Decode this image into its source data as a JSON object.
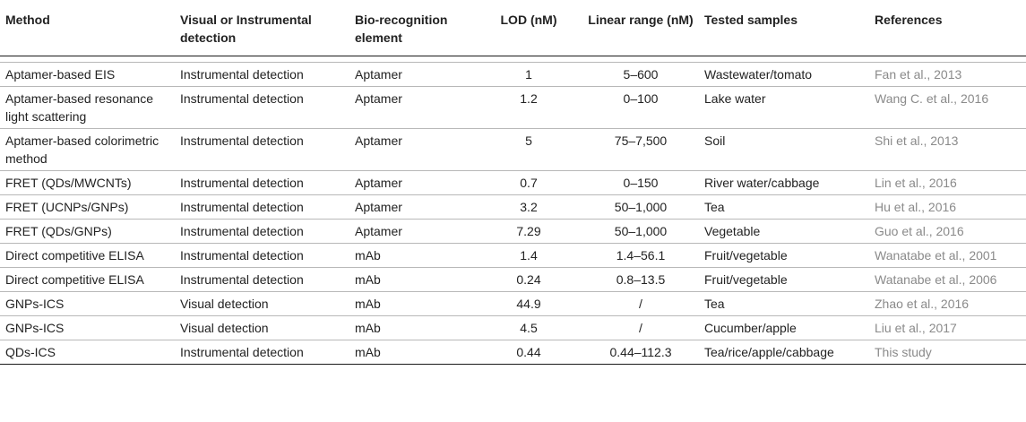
{
  "headers": {
    "method": "Method",
    "visual": "Visual or Instrumental detection",
    "bio": "Bio-recognition element",
    "lod": "LOD (nM)",
    "range": "Linear range (nM)",
    "samples": "Tested samples",
    "refs": "References"
  },
  "rows": [
    {
      "method": "Aptamer-based EIS",
      "visual": "Instrumental detection",
      "bio": "Aptamer",
      "lod": "1",
      "range": "5–600",
      "samples": "Wastewater/tomato",
      "ref": "Fan et al., 2013"
    },
    {
      "method": "Aptamer-based resonance light scattering",
      "visual": "Instrumental detection",
      "bio": "Aptamer",
      "lod": "1.2",
      "range": "0–100",
      "samples": "Lake water",
      "ref": "Wang C. et al., 2016"
    },
    {
      "method": "Aptamer-based colorimetric method",
      "visual": "Instrumental detection",
      "bio": "Aptamer",
      "lod": "5",
      "range": "75–7,500",
      "samples": "Soil",
      "ref": "Shi et al., 2013"
    },
    {
      "method": "FRET (QDs/MWCNTs)",
      "visual": "Instrumental detection",
      "bio": "Aptamer",
      "lod": "0.7",
      "range": "0–150",
      "samples": "River water/cabbage",
      "ref": "Lin et al., 2016"
    },
    {
      "method": "FRET (UCNPs/GNPs)",
      "visual": "Instrumental detection",
      "bio": "Aptamer",
      "lod": "3.2",
      "range": "50–1,000",
      "samples": "Tea",
      "ref": "Hu et al., 2016"
    },
    {
      "method": "FRET (QDs/GNPs)",
      "visual": "Instrumental detection",
      "bio": "Aptamer",
      "lod": "7.29",
      "range": "50–1,000",
      "samples": "Vegetable",
      "ref": "Guo et al., 2016"
    },
    {
      "method": "Direct competitive ELISA",
      "visual": "Instrumental detection",
      "bio": "mAb",
      "lod": "1.4",
      "range": "1.4–56.1",
      "samples": "Fruit/vegetable",
      "ref": "Wanatabe et al., 2001"
    },
    {
      "method": "Direct competitive ELISA",
      "visual": "Instrumental detection",
      "bio": "mAb",
      "lod": "0.24",
      "range": "0.8–13.5",
      "samples": "Fruit/vegetable",
      "ref": "Watanabe et al., 2006"
    },
    {
      "method": "GNPs-ICS",
      "visual": "Visual detection",
      "bio": "mAb",
      "lod": "44.9",
      "range": "/",
      "samples": "Tea",
      "ref": "Zhao et al., 2016"
    },
    {
      "method": "GNPs-ICS",
      "visual": "Visual detection",
      "bio": "mAb",
      "lod": "4.5",
      "range": "/",
      "samples": "Cucumber/apple",
      "ref": "Liu et al., 2017"
    },
    {
      "method": "QDs-ICS",
      "visual": "Instrumental detection",
      "bio": "mAb",
      "lod": "0.44",
      "range": "0.44–112.3",
      "samples": "Tea/rice/apple/cabbage",
      "ref": "This study"
    }
  ]
}
